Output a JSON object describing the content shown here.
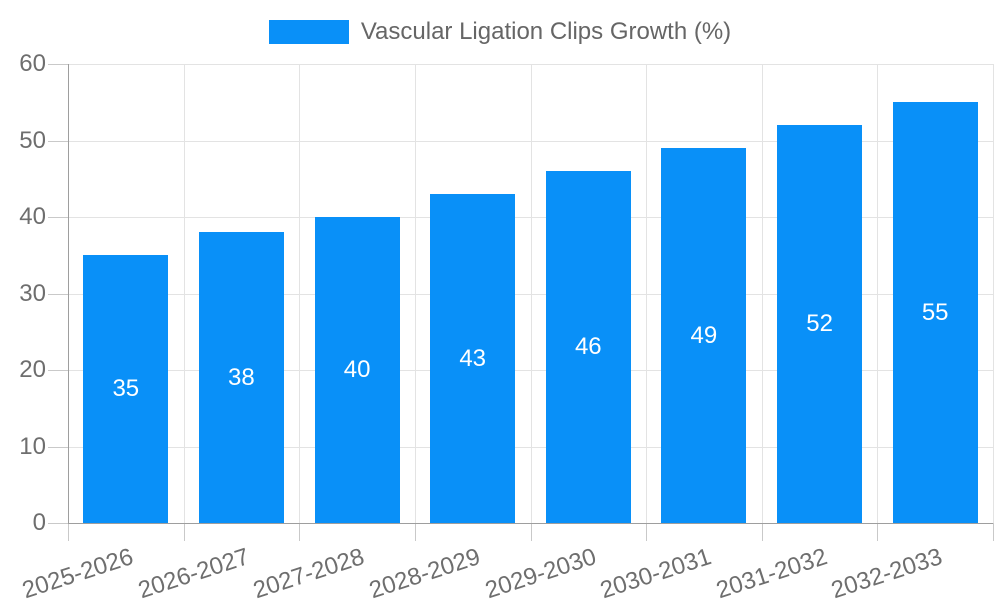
{
  "chart_data": {
    "type": "bar",
    "title": "Vascular Ligation Clips Growth (%)",
    "legend": {
      "label": "Vascular Ligation Clips Growth (%)",
      "position": "top"
    },
    "categories": [
      "2025-2026",
      "2026-2027",
      "2027-2028",
      "2028-2029",
      "2029-2030",
      "2030-2031",
      "2031-2032",
      "2032-2033"
    ],
    "values": [
      35,
      38,
      40,
      43,
      46,
      49,
      52,
      55
    ],
    "xlabel": "",
    "ylabel": "",
    "ylim": [
      0,
      60
    ],
    "yticks": [
      0,
      10,
      20,
      30,
      40,
      50,
      60
    ],
    "grid": true,
    "value_labels": "inside-center",
    "colors": {
      "bar": "#0990F8",
      "bar_value_text": "#FFFFFF",
      "axis_line": "#9E9E9E",
      "grid_line": "#E3E3E3",
      "tick_mark": "#C9C9C9",
      "tick_label": "#6E6E6E",
      "legend_text": "#666666"
    }
  }
}
